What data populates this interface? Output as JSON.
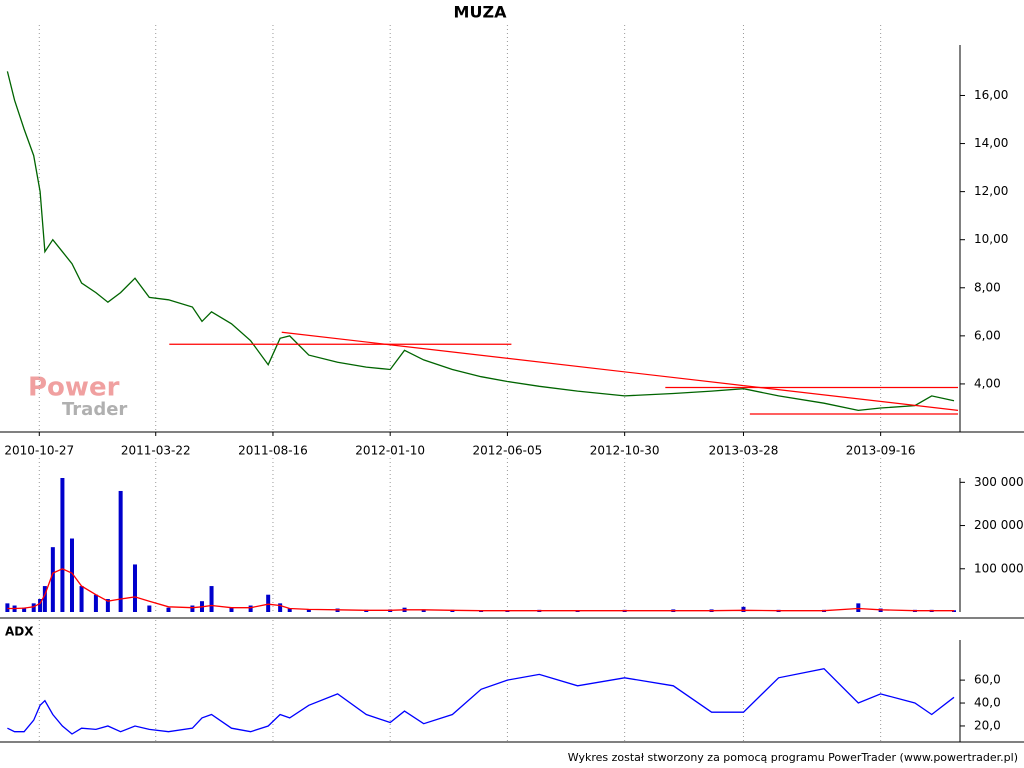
{
  "chart_data": [
    {
      "type": "line",
      "title": "MUZA",
      "x": [
        "2010-09-17",
        "2010-09-26",
        "2010-10-08",
        "2010-10-20",
        "2010-10-28",
        "2010-11-03",
        "2010-11-13",
        "2010-11-25",
        "2010-12-07",
        "2010-12-19",
        "2011-01-06",
        "2011-01-21",
        "2011-02-06",
        "2011-02-24",
        "2011-03-14",
        "2011-04-07",
        "2011-05-07",
        "2011-05-19",
        "2011-05-31",
        "2011-06-25",
        "2011-07-19",
        "2011-08-10",
        "2011-08-25",
        "2011-09-06",
        "2011-09-30",
        "2011-11-05",
        "2011-12-11",
        "2012-01-10",
        "2012-01-28",
        "2012-02-21",
        "2012-03-28",
        "2012-05-03",
        "2012-06-05",
        "2012-07-15",
        "2012-09-01",
        "2012-10-30",
        "2012-12-30",
        "2013-02-16",
        "2013-03-28",
        "2013-05-11",
        "2013-07-07",
        "2013-08-19",
        "2013-09-16",
        "2013-10-29",
        "2013-11-19",
        "2013-12-17"
      ],
      "series": [
        {
          "color": "#006400",
          "values": [
            17.0,
            15.8,
            14.6,
            13.5,
            12.0,
            9.5,
            10.0,
            9.5,
            9.0,
            8.2,
            7.8,
            7.4,
            7.8,
            8.4,
            7.6,
            7.5,
            7.2,
            6.6,
            7.0,
            6.5,
            5.8,
            4.8,
            5.9,
            6.0,
            5.2,
            4.9,
            4.7,
            4.6,
            5.4,
            5.0,
            4.6,
            4.3,
            4.1,
            3.9,
            3.7,
            3.5,
            3.6,
            3.7,
            3.8,
            3.5,
            3.2,
            2.9,
            3.0,
            3.1,
            3.5,
            3.3
          ]
        }
      ],
      "trendlines": [
        {
          "color": "#ff0000",
          "x": [
            "2011-04-08",
            "2012-06-10"
          ],
          "y": [
            5.65,
            5.65
          ]
        },
        {
          "color": "#ff0000",
          "x": [
            "2011-08-27",
            "2013-12-22"
          ],
          "y": [
            6.15,
            2.9
          ]
        },
        {
          "color": "#ff0000",
          "x": [
            "2012-12-20",
            "2013-12-22"
          ],
          "y": [
            3.85,
            3.85
          ]
        },
        {
          "color": "#ff0000",
          "x": [
            "2013-04-05",
            "2013-12-22"
          ],
          "y": [
            2.75,
            2.75
          ]
        }
      ],
      "xlim": [
        "2010-09-14",
        "2013-12-22"
      ],
      "xticks": [
        "2010-10-27",
        "2011-03-22",
        "2011-08-16",
        "2012-01-10",
        "2012-06-05",
        "2012-10-30",
        "2013-03-28",
        "2013-09-16"
      ],
      "ylim": [
        2,
        18.1
      ],
      "yticks": [
        {
          "value": 4,
          "label": "4,00"
        },
        {
          "value": 6,
          "label": "6,00"
        },
        {
          "value": 8,
          "label": "8,00"
        },
        {
          "value": 10,
          "label": "10,00"
        },
        {
          "value": 12,
          "label": "12,00"
        },
        {
          "value": 14,
          "label": "14,00"
        },
        {
          "value": 16,
          "label": "16,00"
        }
      ],
      "grid": true
    },
    {
      "type": "bar",
      "x": [
        "2010-09-17",
        "2010-09-26",
        "2010-10-08",
        "2010-10-20",
        "2010-10-28",
        "2010-11-03",
        "2010-11-13",
        "2010-11-25",
        "2010-12-07",
        "2010-12-19",
        "2011-01-06",
        "2011-01-21",
        "2011-02-06",
        "2011-02-24",
        "2011-03-14",
        "2011-04-07",
        "2011-05-07",
        "2011-05-19",
        "2011-05-31",
        "2011-06-25",
        "2011-07-19",
        "2011-08-10",
        "2011-08-25",
        "2011-09-06",
        "2011-09-30",
        "2011-11-05",
        "2011-12-11",
        "2012-01-10",
        "2012-01-28",
        "2012-02-21",
        "2012-03-28",
        "2012-05-03",
        "2012-06-05",
        "2012-07-15",
        "2012-09-01",
        "2012-10-30",
        "2012-12-30",
        "2013-02-16",
        "2013-03-28",
        "2013-05-11",
        "2013-07-07",
        "2013-08-19",
        "2013-09-16",
        "2013-10-29",
        "2013-11-19",
        "2013-12-17"
      ],
      "series": [
        {
          "type": "bar",
          "color": "#0000cc",
          "values": [
            20000,
            15000,
            10000,
            20000,
            30000,
            60000,
            150000,
            310000,
            170000,
            60000,
            40000,
            30000,
            280000,
            110000,
            15000,
            10000,
            15000,
            25000,
            60000,
            10000,
            15000,
            40000,
            20000,
            8000,
            6000,
            8000,
            5000,
            6000,
            10000,
            6000,
            5000,
            4000,
            4000,
            5000,
            4000,
            5000,
            6000,
            6000,
            12000,
            5000,
            5000,
            20000,
            8000,
            5000,
            5000,
            4000
          ]
        },
        {
          "type": "line",
          "color": "#ff0000",
          "values": [
            8000,
            8000,
            9000,
            12000,
            20000,
            40000,
            90000,
            100000,
            90000,
            60000,
            40000,
            25000,
            30000,
            35000,
            25000,
            12000,
            10000,
            12000,
            15000,
            10000,
            10000,
            18000,
            15000,
            8000,
            6000,
            5000,
            4000,
            4000,
            5000,
            5000,
            4000,
            3000,
            3000,
            3000,
            3000,
            3000,
            3000,
            3000,
            4000,
            3000,
            3000,
            8000,
            5000,
            3000,
            3000,
            3000
          ]
        }
      ],
      "xlim": [
        "2010-09-14",
        "2013-12-22"
      ],
      "ylim": [
        0,
        310000
      ],
      "yticks": [
        {
          "value": 100000,
          "label": "100 000"
        },
        {
          "value": 200000,
          "label": "200 000"
        },
        {
          "value": 300000,
          "label": "300 000"
        }
      ]
    },
    {
      "type": "line",
      "title": "ADX",
      "x": [
        "2010-09-17",
        "2010-09-26",
        "2010-10-08",
        "2010-10-20",
        "2010-10-28",
        "2010-11-03",
        "2010-11-13",
        "2010-11-25",
        "2010-12-07",
        "2010-12-19",
        "2011-01-06",
        "2011-01-21",
        "2011-02-06",
        "2011-02-24",
        "2011-03-14",
        "2011-04-07",
        "2011-05-07",
        "2011-05-19",
        "2011-05-31",
        "2011-06-25",
        "2011-07-19",
        "2011-08-10",
        "2011-08-25",
        "2011-09-06",
        "2011-09-30",
        "2011-11-05",
        "2011-12-11",
        "2012-01-10",
        "2012-01-28",
        "2012-02-21",
        "2012-03-28",
        "2012-05-03",
        "2012-06-05",
        "2012-07-15",
        "2012-09-01",
        "2012-10-30",
        "2012-12-30",
        "2013-02-16",
        "2013-03-28",
        "2013-05-11",
        "2013-07-07",
        "2013-08-19",
        "2013-09-16",
        "2013-10-29",
        "2013-11-19",
        "2013-12-17"
      ],
      "series": [
        {
          "color": "#0000ff",
          "values": [
            18,
            15,
            15,
            25,
            38,
            42,
            30,
            20,
            13,
            18,
            17,
            20,
            15,
            20,
            17,
            15,
            18,
            27,
            30,
            18,
            15,
            20,
            30,
            27,
            38,
            48,
            30,
            23,
            33,
            22,
            30,
            52,
            60,
            65,
            55,
            62,
            55,
            32,
            32,
            62,
            70,
            40,
            48,
            40,
            30,
            45
          ]
        }
      ],
      "xlim": [
        "2010-09-14",
        "2013-12-22"
      ],
      "ylim": [
        6,
        95
      ],
      "yticks": [
        {
          "value": 20,
          "label": "20,0"
        },
        {
          "value": 40,
          "label": "40,0"
        },
        {
          "value": 60,
          "label": "60,0"
        }
      ]
    }
  ],
  "watermark": [
    "Power",
    "Trader"
  ],
  "footer": "Wykres został stworzony za pomocą programu PowerTrader (www.powertrader.pl)"
}
